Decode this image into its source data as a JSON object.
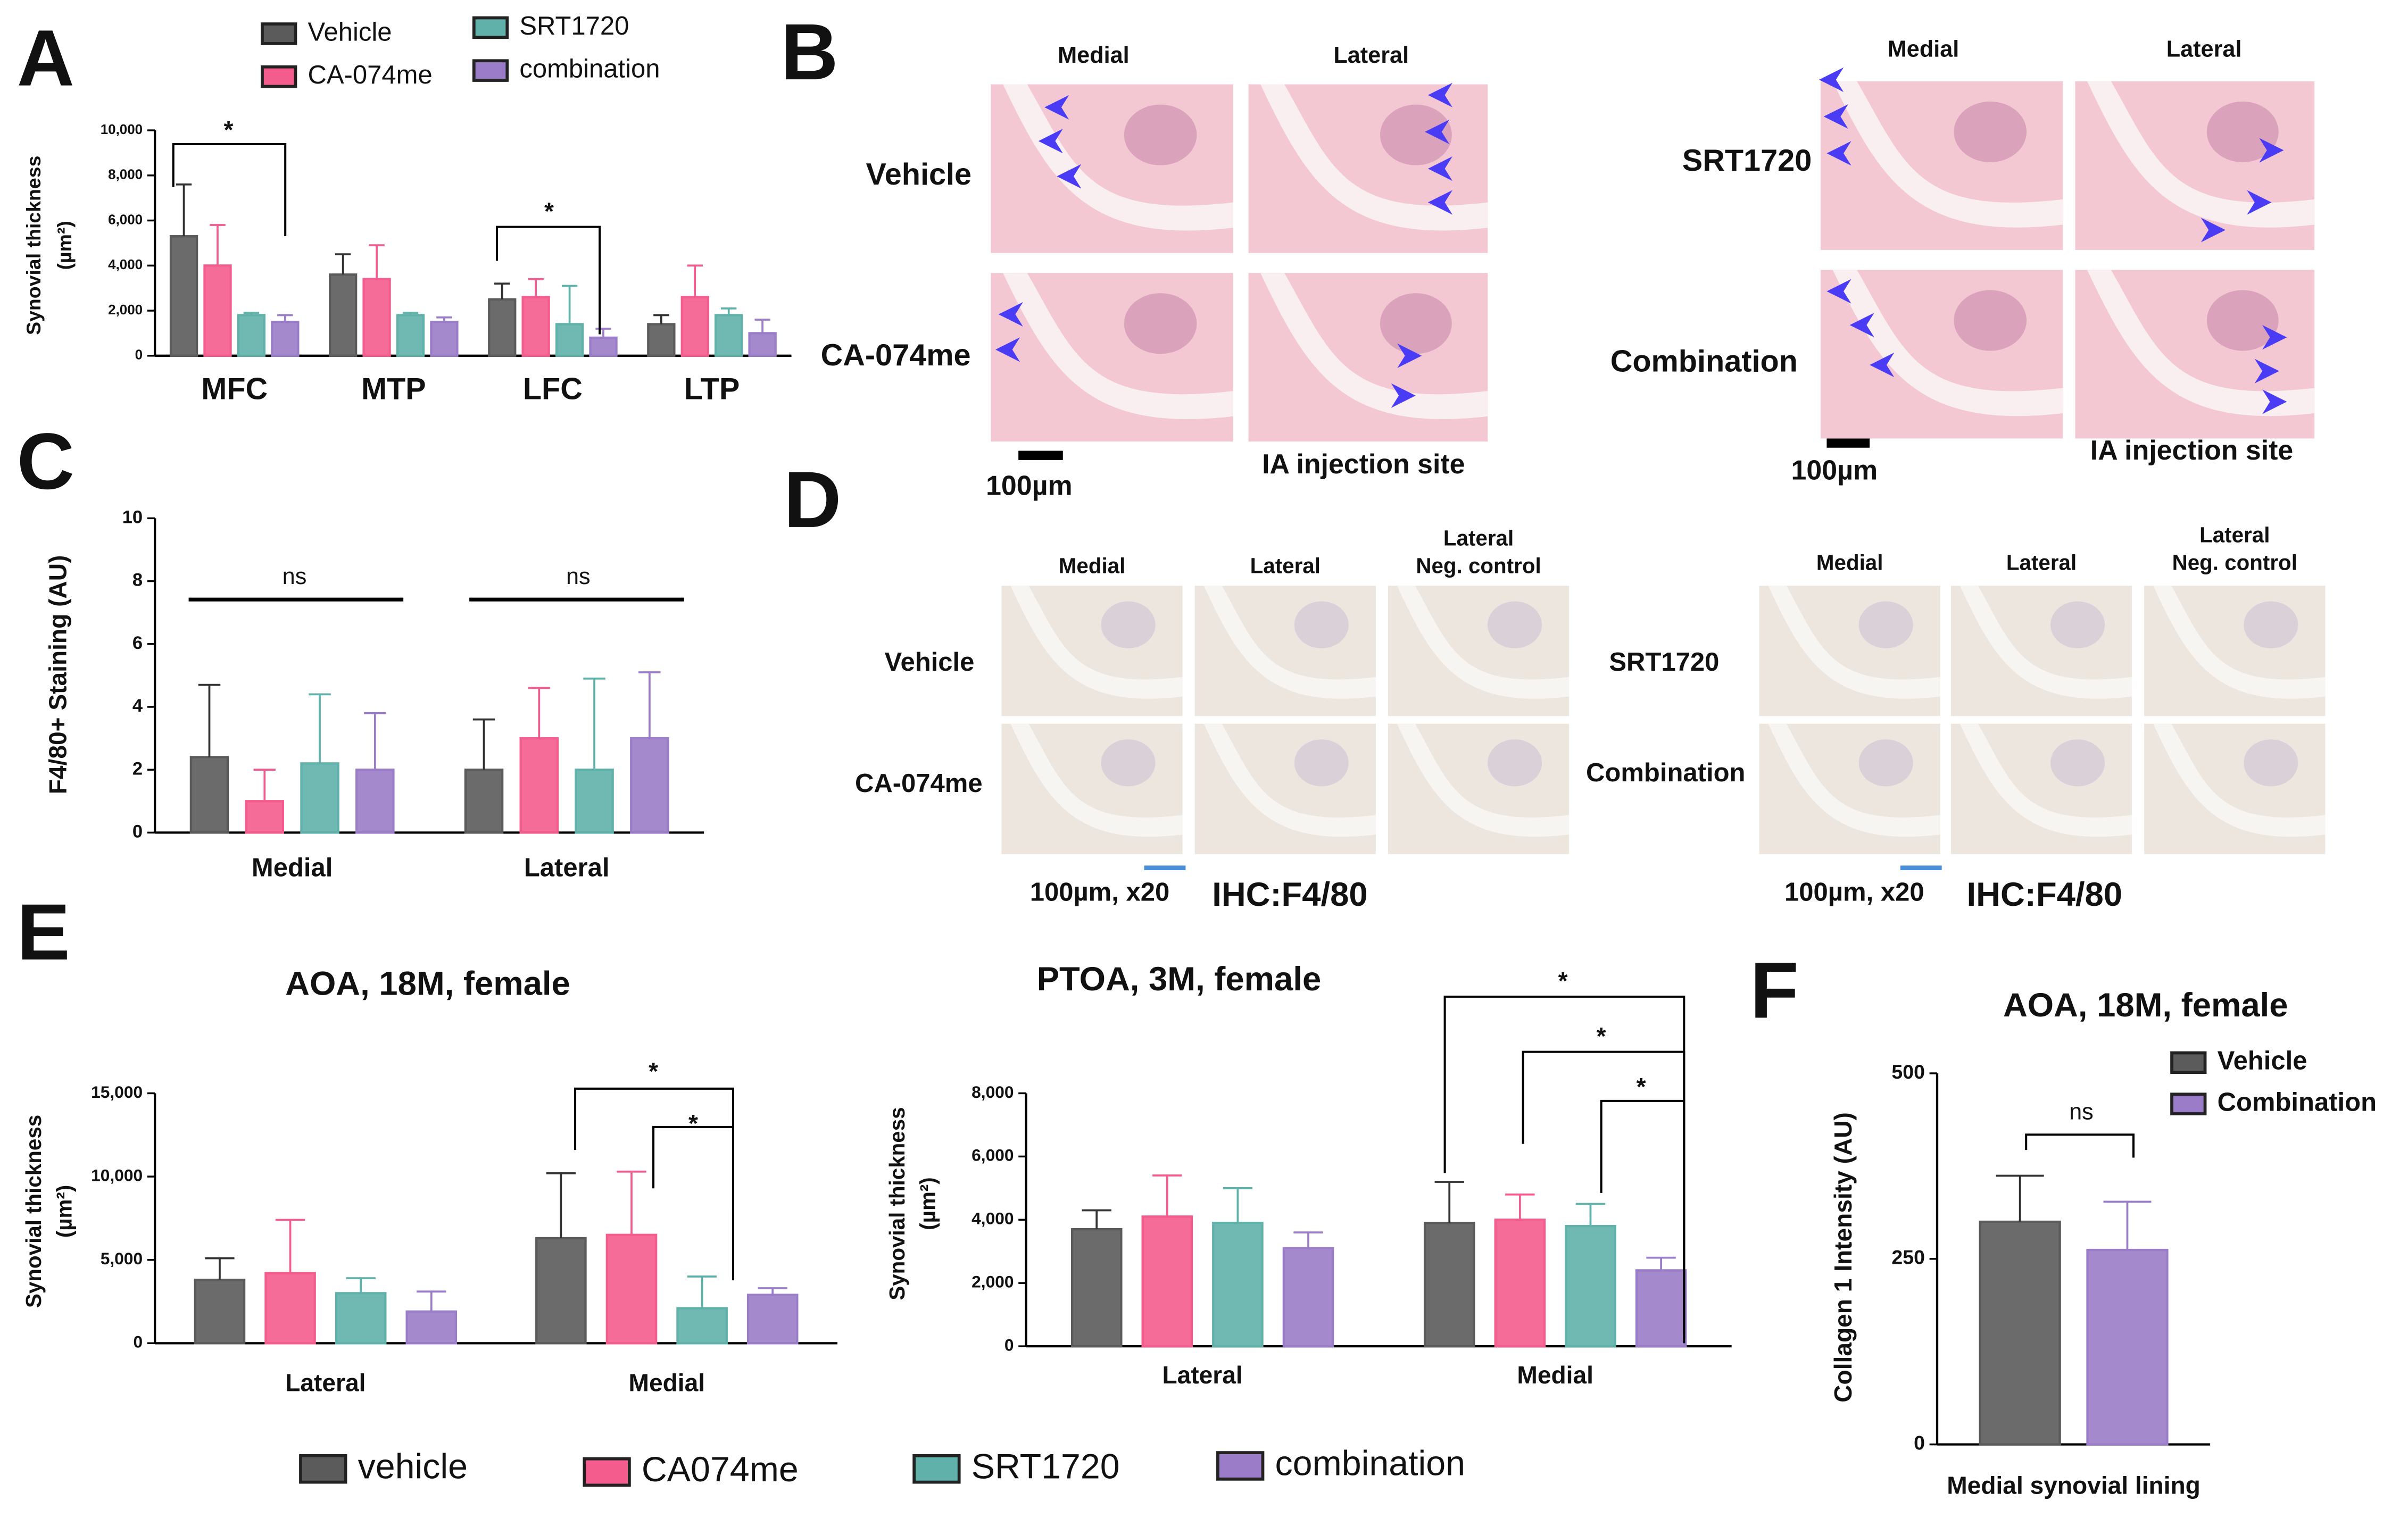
{
  "chart_data": [
    {
      "type": "bar",
      "categories": [
        "MFC",
        "MTP",
        "LFC",
        "LTP"
      ],
      "ylabel": [
        "Synovial thickness",
        "(µm²)"
      ],
      "ylim": [
        0,
        10000
      ],
      "yticks": [
        0,
        {
          "value": 2000,
          "label": "2,000"
        },
        {
          "value": 4000,
          "label": "4,000"
        },
        {
          "value": 6000,
          "label": "6,000"
        },
        {
          "value": 8000,
          "label": "8,000"
        },
        {
          "value": 10000,
          "label": "10,000"
        }
      ],
      "series": [
        {
          "name": "Vehicle",
          "color": "#5b5b5b",
          "values": [
            5300,
            3600,
            2500,
            1400
          ],
          "errors": [
            2300,
            900,
            700,
            400
          ]
        },
        {
          "name": "CA-074me",
          "color": "#f45c8e",
          "values": [
            4000,
            3400,
            2600,
            2600
          ],
          "errors": [
            1800,
            1500,
            800,
            1400
          ]
        },
        {
          "name": "SRT1720",
          "color": "#5fb1aa",
          "values": [
            1800,
            1800,
            1400,
            1800
          ],
          "errors": [
            100,
            100,
            1700,
            300
          ]
        },
        {
          "name": "combination",
          "color": "#9a7cc8",
          "values": [
            1500,
            1500,
            800,
            1000
          ],
          "errors": [
            300,
            200,
            400,
            600
          ]
        }
      ],
      "annotations": [
        "*",
        "*"
      ]
    },
    {
      "type": "bar",
      "categories": [
        "Medial",
        "Lateral"
      ],
      "ylabel": [
        "F4/80+ Staining (AU)"
      ],
      "ylim": [
        0,
        10
      ],
      "yticks": [
        0,
        2,
        4,
        6,
        8,
        10
      ],
      "series": [
        {
          "color": "#5b5b5b",
          "values": [
            2.4,
            2
          ],
          "errors": [
            2.3,
            1.6
          ]
        },
        {
          "color": "#f45c8e",
          "values": [
            1,
            3
          ],
          "errors": [
            1,
            1.6
          ]
        },
        {
          "color": "#5fb1aa",
          "values": [
            2.2,
            2
          ],
          "errors": [
            2.2,
            2.9
          ]
        },
        {
          "color": "#9a7cc8",
          "values": [
            2,
            3
          ],
          "errors": [
            1.8,
            2.1
          ]
        }
      ],
      "annotations": [
        "ns",
        "ns"
      ]
    },
    {
      "type": "bar",
      "title": "AOA, 18M, female",
      "categories": [
        "Lateral",
        "Medial"
      ],
      "ylabel": [
        "Synovial thickness",
        "(µm²)"
      ],
      "ylim": [
        0,
        15000
      ],
      "yticks": [
        0,
        {
          "value": 5000,
          "label": "5,000"
        },
        {
          "value": 10000,
          "label": "10,000"
        },
        {
          "value": 15000,
          "label": "15,000"
        }
      ],
      "series": [
        {
          "name": "vehicle",
          "color": "#5b5b5b",
          "values": [
            3800,
            6300
          ],
          "errors": [
            1300,
            3900
          ]
        },
        {
          "name": "CA074me",
          "color": "#f45c8e",
          "values": [
            4200,
            6500
          ],
          "errors": [
            3200,
            3800
          ]
        },
        {
          "name": "SRT1720",
          "color": "#5fb1aa",
          "values": [
            3000,
            2100
          ],
          "errors": [
            900,
            1900
          ]
        },
        {
          "name": "combination",
          "color": "#9a7cc8",
          "values": [
            1900,
            2900
          ],
          "errors": [
            1200,
            400
          ]
        }
      ],
      "annotations": [
        "*",
        "*"
      ]
    },
    {
      "type": "bar",
      "title": "PTOA, 3M, female",
      "categories": [
        "Lateral",
        "Medial"
      ],
      "ylabel": [
        "Synovial thickness",
        "(µm²)"
      ],
      "ylim": [
        0,
        8000
      ],
      "yticks": [
        0,
        {
          "value": 2000,
          "label": "2,000"
        },
        {
          "value": 4000,
          "label": "4,000"
        },
        {
          "value": 6000,
          "label": "6,000"
        },
        {
          "value": 8000,
          "label": "8,000"
        }
      ],
      "series": [
        {
          "color": "#5b5b5b",
          "values": [
            3700,
            3900
          ],
          "errors": [
            600,
            1300
          ]
        },
        {
          "color": "#f45c8e",
          "values": [
            4100,
            4000
          ],
          "errors": [
            1300,
            800
          ]
        },
        {
          "color": "#5fb1aa",
          "values": [
            3900,
            3800
          ],
          "errors": [
            1100,
            700
          ]
        },
        {
          "color": "#9a7cc8",
          "values": [
            3100,
            2400
          ],
          "errors": [
            500,
            400
          ]
        }
      ],
      "annotations": [
        "*",
        "*",
        "*"
      ]
    },
    {
      "type": "bar",
      "title": "AOA, 18M, female",
      "categories": [
        "Medial synovial lining"
      ],
      "ylabel": [
        "Collagen 1 Intensity (AU)"
      ],
      "ylim": [
        0,
        500
      ],
      "yticks": [
        0,
        250,
        500
      ],
      "series": [
        {
          "name": "Vehicle",
          "color": "#5b5b5b",
          "values": [
            300
          ],
          "errors": [
            62
          ]
        },
        {
          "name": "Combination",
          "color": "#9a7cc8",
          "values": [
            262
          ],
          "errors": [
            65
          ]
        }
      ],
      "annotations": [
        "ns"
      ]
    }
  ],
  "figure": {
    "panel_labels": [
      "A",
      "B",
      "C",
      "D",
      "E",
      "F"
    ],
    "B": {
      "columns": [
        "Medial",
        "Lateral",
        "Medial",
        "Lateral"
      ],
      "rows": [
        "Vehicle",
        "CA-074me",
        "SRT1720",
        "Combination"
      ],
      "scale": [
        "100µm",
        "100µm"
      ],
      "site": [
        "IA injection site",
        "IA injection site"
      ]
    },
    "D": {
      "columns": [
        [
          "Medial"
        ],
        [
          "Lateral"
        ],
        [
          "Lateral",
          "Neg. control"
        ],
        [
          "Medial"
        ],
        [
          "Lateral"
        ],
        [
          "Lateral",
          "Neg. control"
        ]
      ],
      "rows": [
        "Vehicle",
        "CA-074me",
        "SRT1720",
        "Combination"
      ],
      "scale": [
        "100µm, x20",
        "100µm, x20"
      ],
      "stain": [
        "IHC:F4/80",
        "IHC:F4/80"
      ]
    }
  }
}
